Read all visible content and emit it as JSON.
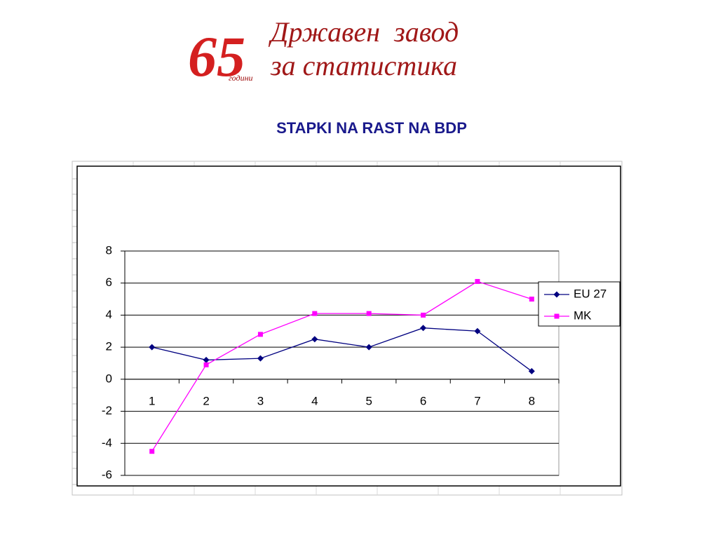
{
  "header": {
    "logo_number": "65",
    "logo_years": "години",
    "logo_line1": "Државен  завод",
    "logo_line2": "за статистика"
  },
  "chart_data": {
    "type": "line",
    "title": "STAPKI NA RAST NA BDP",
    "categories": [
      1,
      2,
      3,
      4,
      5,
      6,
      7,
      8
    ],
    "series": [
      {
        "name": "EU 27",
        "color": "#000080",
        "marker": "diamond",
        "values": [
          2.0,
          1.2,
          1.3,
          2.5,
          2.0,
          3.2,
          3.0,
          0.5
        ]
      },
      {
        "name": "MK",
        "color": "#ff00ff",
        "marker": "square",
        "values": [
          -4.5,
          0.9,
          2.8,
          4.1,
          4.1,
          4.0,
          6.1,
          5.0
        ]
      }
    ],
    "ylim": [
      -6,
      8
    ],
    "yticks": [
      -6,
      -4,
      -2,
      0,
      2,
      4,
      6,
      8
    ],
    "grid": true,
    "legend": "right"
  }
}
